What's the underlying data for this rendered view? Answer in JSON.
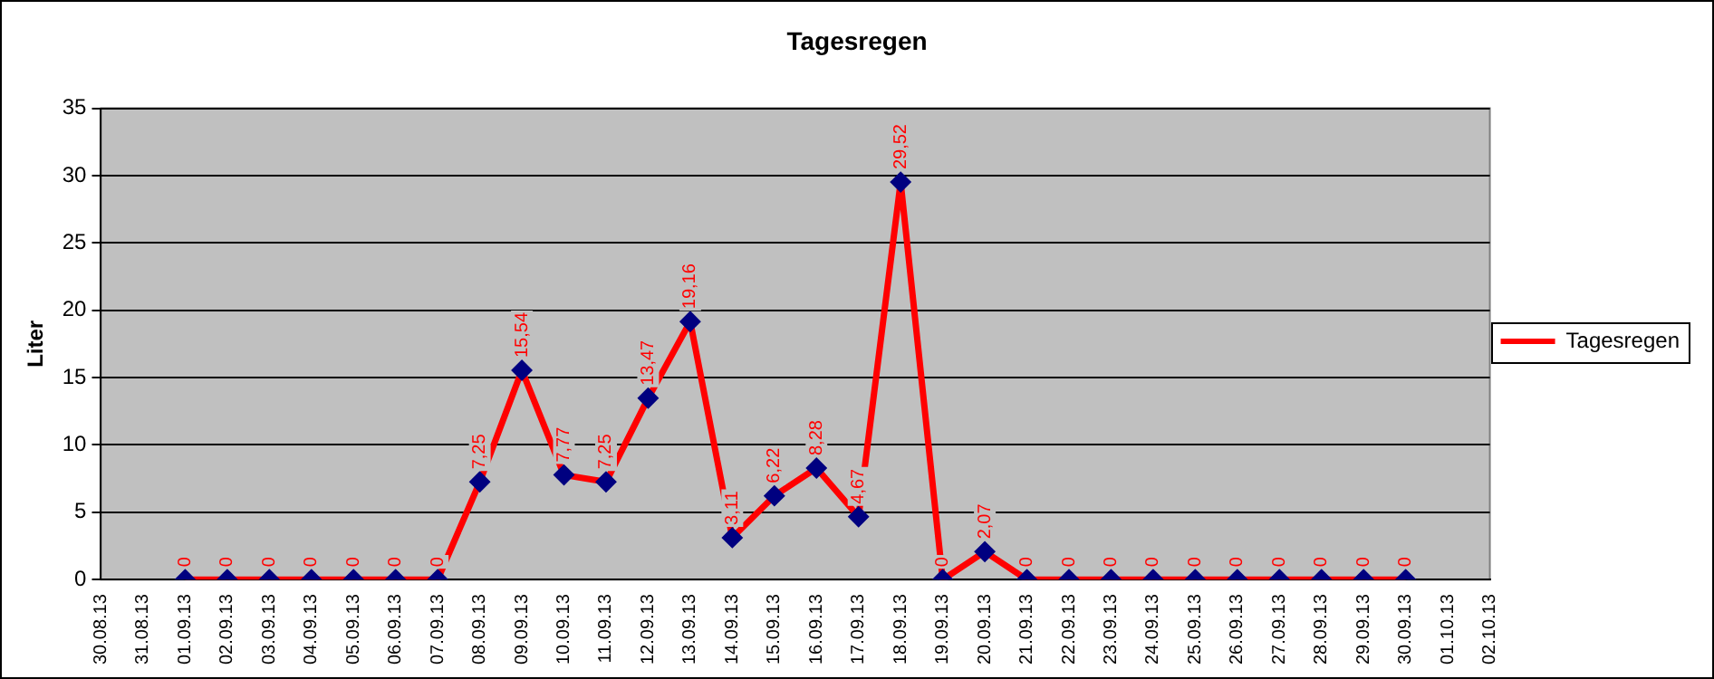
{
  "chart_data": {
    "type": "line",
    "title": "Tagesregen",
    "ylabel": "Liter",
    "categories": [
      "30.08.13",
      "31.08.13",
      "01.09.13",
      "02.09.13",
      "03.09.13",
      "04.09.13",
      "05.09.13",
      "06.09.13",
      "07.09.13",
      "08.09.13",
      "09.09.13",
      "10.09.13",
      "11.09.13",
      "12.09.13",
      "13.09.13",
      "14.09.13",
      "15.09.13",
      "16.09.13",
      "17.09.13",
      "18.09.13",
      "19.09.13",
      "20.09.13",
      "21.09.13",
      "22.09.13",
      "23.09.13",
      "24.09.13",
      "25.09.13",
      "26.09.13",
      "27.09.13",
      "28.09.13",
      "29.09.13",
      "30.09.13",
      "01.10.13",
      "02.10.13"
    ],
    "series": [
      {
        "name": "Tagesregen",
        "color": "#ff0000",
        "values": [
          null,
          null,
          0,
          0,
          0,
          0,
          0,
          0,
          0,
          7.25,
          15.54,
          7.77,
          7.25,
          13.47,
          19.16,
          3.11,
          6.22,
          8.28,
          4.67,
          29.52,
          0,
          2.07,
          0,
          0,
          0,
          0,
          0,
          0,
          0,
          0,
          0,
          0,
          null,
          null
        ],
        "value_labels": [
          null,
          null,
          "0",
          "0",
          "0",
          "0",
          "0",
          "0",
          "0",
          "7,25",
          "15,54",
          "7,77",
          "7,25",
          "13,47",
          "19,16",
          "3,11",
          "6,22",
          "8,28",
          "4,67",
          "29,52",
          "0",
          "2,07",
          "0",
          "0",
          "0",
          "0",
          "0",
          "0",
          "0",
          "0",
          "0",
          "0",
          null,
          null
        ]
      }
    ],
    "ylim": [
      0,
      35
    ],
    "yticks": [
      0,
      5,
      10,
      15,
      20,
      25,
      30,
      35
    ],
    "grid": "y",
    "legend": "right",
    "marker": "diamond",
    "line_style": "solid"
  }
}
